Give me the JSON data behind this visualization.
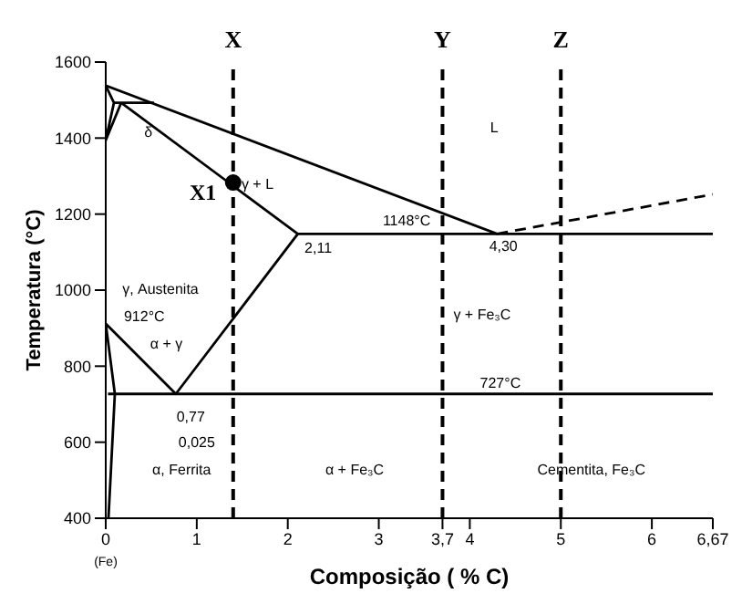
{
  "chart_data": {
    "type": "line",
    "xlabel": "Composição ( % C)",
    "ylabel": "Temperatura (°C)",
    "xlim": [
      0,
      6.67
    ],
    "xticks": [
      0,
      1,
      2,
      3,
      {
        "value": 3.7,
        "label": "3,7"
      },
      4,
      5,
      6,
      {
        "value": 6.67,
        "label": "6,67"
      }
    ],
    "ylim": [
      400,
      1600
    ],
    "yticks": [
      400,
      600,
      800,
      1000,
      1200,
      1400,
      1600
    ],
    "marker": "none",
    "line_style": "solid",
    "series": [
      {
        "color": "#000000",
        "x": [
          0,
          4.3
        ],
        "values": [
          1538,
          1148
        ]
      },
      {
        "color": "#000000",
        "x": [
          4.3,
          6.67
        ],
        "values": [
          1148,
          1252
        ],
        "line_style": "dashed"
      },
      {
        "color": "#000000",
        "x": [
          0.17,
          2.11
        ],
        "values": [
          1493,
          1148
        ]
      },
      {
        "color": "#000000",
        "x": [
          2.11,
          6.67
        ],
        "values": [
          1148,
          1148
        ]
      },
      {
        "color": "#000000",
        "x": [
          0.09,
          0.53
        ],
        "values": [
          1493,
          1493
        ]
      },
      {
        "color": "#000000",
        "x": [
          0,
          0.09,
          0,
          0.17
        ],
        "values": [
          1538,
          1493,
          1394,
          1493
        ]
      },
      {
        "color": "#000000",
        "x": [
          0,
          0.77,
          2.11
        ],
        "values": [
          912,
          727,
          1148
        ]
      },
      {
        "color": "#000000",
        "x": [
          0.025,
          6.67
        ],
        "values": [
          727,
          727
        ]
      },
      {
        "color": "#000000",
        "x": [
          0,
          0.1,
          0.03
        ],
        "values": [
          912,
          727,
          400
        ]
      },
      {
        "type": "scatter",
        "color": "#000000",
        "x": [
          1.4
        ],
        "values": [
          1283
        ],
        "marker": "circle"
      }
    ],
    "ref_lines": [
      {
        "axis": "x",
        "value": 1.4,
        "label": "X",
        "color": "#000000",
        "line_style": "dashed"
      },
      {
        "axis": "x",
        "value": 3.7,
        "label": "Y",
        "color": "#000000",
        "line_style": "dashed"
      },
      {
        "axis": "x",
        "value": 5,
        "label": "Z",
        "color": "#000000",
        "line_style": "dashed"
      }
    ],
    "annotations": [
      "X1",
      "γ + L",
      "L",
      "1148°C",
      "4,30",
      "2,11",
      "γ, Austenita",
      "912°C",
      "α + γ",
      "727°C",
      "0,77",
      "0,025",
      "α, Ferrita",
      "α + Fe₃C",
      "Cementita, Fe₃C",
      "γ + Fe₃C",
      "δ",
      "(Fe)"
    ]
  }
}
